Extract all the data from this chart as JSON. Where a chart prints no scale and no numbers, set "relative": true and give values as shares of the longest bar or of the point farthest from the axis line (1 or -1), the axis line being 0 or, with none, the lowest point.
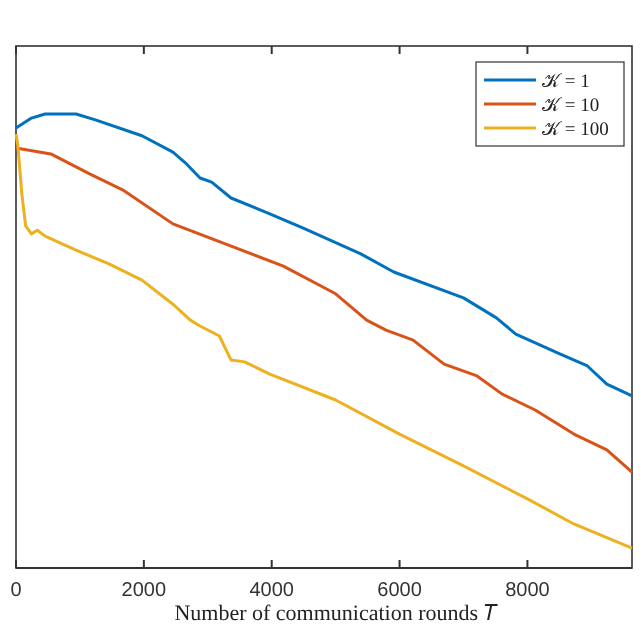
{
  "chart_data": {
    "type": "line",
    "relative": true,
    "xlabel": "Number of communication rounds 𝑇",
    "xlim": [
      0,
      9636
    ],
    "xticks": [
      0,
      2000,
      4000,
      6000,
      8000
    ],
    "legend": "top right",
    "line_style": "solid",
    "marker": "none",
    "grid": false,
    "series": [
      {
        "name": "𝒦 = 1",
        "color": "#0072bd",
        "x": [
          0,
          242,
          455,
          939,
          1242,
          1970,
          2455,
          2667,
          2879,
          3061,
          3364,
          3970,
          4485,
          5394,
          5909,
          7000,
          7515,
          7818,
          8515,
          8939,
          9242,
          9636
        ],
        "values": [
          0.969,
          0.991,
          1,
          1,
          0.987,
          0.952,
          0.916,
          0.89,
          0.859,
          0.85,
          0.815,
          0.78,
          0.749,
          0.692,
          0.652,
          0.595,
          0.551,
          0.515,
          0.471,
          0.445,
          0.405,
          0.379
        ]
      },
      {
        "name": "𝒦 = 10",
        "color": "#d95319",
        "x": [
          0,
          545,
          1152,
          1667,
          2455,
          3273,
          4182,
          5000,
          5485,
          5788,
          6212,
          6697,
          7212,
          7606,
          8121,
          8727,
          9242,
          9636
        ],
        "values": [
          0.925,
          0.912,
          0.868,
          0.833,
          0.758,
          0.714,
          0.665,
          0.604,
          0.546,
          0.524,
          0.502,
          0.449,
          0.423,
          0.383,
          0.348,
          0.295,
          0.26,
          0.211
        ]
      },
      {
        "name": "𝒦 = 100",
        "color": "#edb120",
        "x": [
          0,
          30,
          91,
          152,
          242,
          333,
          455,
          939,
          1455,
          1970,
          2455,
          2727,
          2879,
          3182,
          3364,
          3576,
          3970,
          5000,
          6000,
          7000,
          8030,
          8727,
          9636
        ],
        "values": [
          0.956,
          0.93,
          0.824,
          0.753,
          0.736,
          0.744,
          0.731,
          0.7,
          0.67,
          0.634,
          0.581,
          0.546,
          0.533,
          0.511,
          0.458,
          0.454,
          0.427,
          0.37,
          0.295,
          0.225,
          0.15,
          0.097,
          0.044
        ]
      }
    ]
  }
}
